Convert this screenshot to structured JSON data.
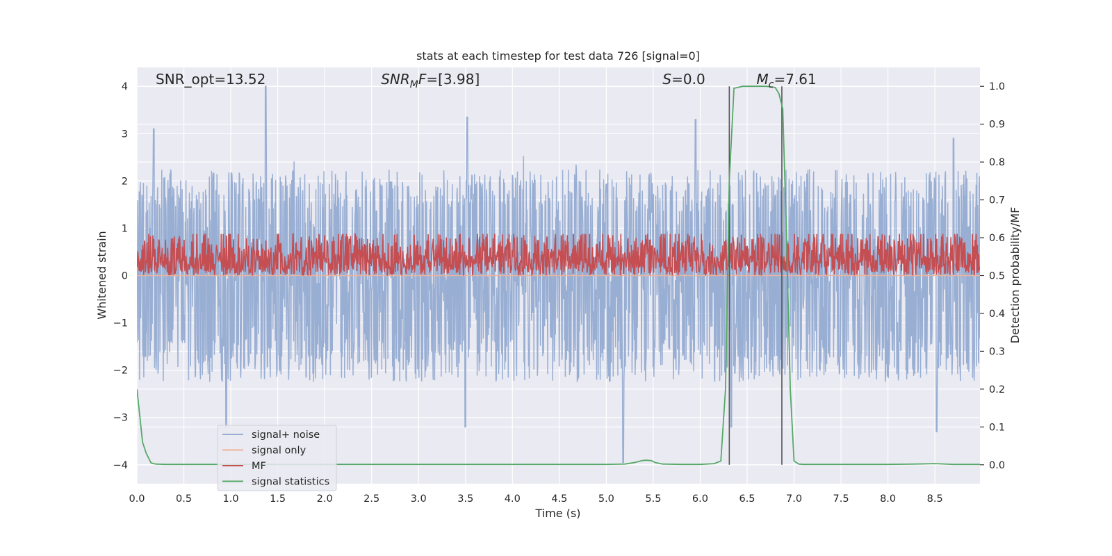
{
  "chart_data": {
    "type": "line",
    "title": "stats at each timestep for test data 726 [signal=0]",
    "xlabel": "Time (s)",
    "ylabel": "Whitened strain",
    "y2label": "Detection probability/MF",
    "xlim": [
      0,
      8.98
    ],
    "ylim": [
      -4.4,
      4.4
    ],
    "y2lim": [
      -0.05,
      1.05
    ],
    "x_ticks": [
      0.0,
      0.5,
      1.0,
      1.5,
      2.0,
      2.5,
      3.0,
      3.5,
      4.0,
      4.5,
      5.0,
      5.5,
      6.0,
      6.5,
      7.0,
      7.5,
      8.0,
      8.5
    ],
    "x_tick_labels": [
      "0.0",
      "0.5",
      "1.0",
      "1.5",
      "2.0",
      "2.5",
      "3.0",
      "3.5",
      "4.0",
      "4.5",
      "5.0",
      "5.5",
      "6.0",
      "6.5",
      "7.0",
      "7.5",
      "8.0",
      "8.5"
    ],
    "y_ticks": [
      -4,
      -3,
      -2,
      -1,
      0,
      1,
      2,
      3,
      4
    ],
    "y_tick_labels": [
      "−4",
      "−3",
      "−2",
      "−1",
      "0",
      "1",
      "2",
      "3",
      "4"
    ],
    "y2_ticks": [
      0.0,
      0.1,
      0.2,
      0.3,
      0.4,
      0.5,
      0.6,
      0.7,
      0.8,
      0.9,
      1.0
    ],
    "y2_tick_labels": [
      "0.0",
      "0.1",
      "0.2",
      "0.3",
      "0.4",
      "0.5",
      "0.6",
      "0.7",
      "0.8",
      "0.9",
      "1.0"
    ],
    "grid": true,
    "annotations": [
      {
        "id": "snr-opt",
        "x": 0.2,
        "text_parts": [
          {
            "t": "SNR_opt=13.52",
            "italic": false
          }
        ]
      },
      {
        "id": "snr-mf",
        "x": 2.6,
        "text_parts": [
          {
            "t": "SNR",
            "italic": true
          },
          {
            "t": "M",
            "italic": true,
            "sub": true
          },
          {
            "t": "F",
            "italic": true
          },
          {
            "t": "=[3.98]",
            "italic": false
          }
        ]
      },
      {
        "id": "s-stat",
        "x": 5.6,
        "text_parts": [
          {
            "t": "S",
            "italic": true
          },
          {
            "t": "=0.0",
            "italic": false
          }
        ]
      },
      {
        "id": "mc",
        "x": 6.6,
        "text_parts": [
          {
            "t": "M",
            "italic": true
          },
          {
            "t": "c",
            "italic": true,
            "sub": true
          },
          {
            "t": "=7.61",
            "italic": false
          }
        ]
      }
    ],
    "vertical_lines": [
      6.31,
      6.87
    ],
    "legend": {
      "position": "lower-left",
      "entries": [
        {
          "label": "signal+ noise",
          "color": "#98aed3"
        },
        {
          "label": "signal only",
          "color": "#f0b39a"
        },
        {
          "label": "MF",
          "color": "#c44e52"
        },
        {
          "label": "signal statistics",
          "color": "#55a868"
        }
      ]
    },
    "series": [
      {
        "name": "signal+ noise",
        "kind": "noise",
        "axis": "left",
        "color": "#98aed3",
        "approx_band": [
          -1.5,
          1.5
        ],
        "approx_extremes": [
          -4.0,
          4.0
        ],
        "peaks": [
          [
            0.18,
            3.1
          ],
          [
            1.37,
            4.0
          ],
          [
            0.95,
            -3.2
          ],
          [
            3.52,
            3.35
          ],
          [
            3.5,
            -3.2
          ],
          [
            5.18,
            -3.95
          ],
          [
            5.95,
            3.3
          ],
          [
            6.33,
            -3.2
          ],
          [
            8.7,
            2.9
          ],
          [
            8.52,
            -3.3
          ]
        ]
      },
      {
        "name": "signal only",
        "kind": "flat",
        "axis": "left",
        "color": "#f0b39a",
        "value": 0
      },
      {
        "name": "MF",
        "kind": "noise",
        "axis": "right",
        "color": "#c44e52",
        "approx_band": [
          0.5,
          0.58
        ],
        "approx_extremes": [
          0.5,
          0.61
        ]
      },
      {
        "name": "signal statistics",
        "kind": "line",
        "axis": "right",
        "color": "#55a868",
        "x": [
          0.0,
          0.03,
          0.06,
          0.1,
          0.15,
          0.2,
          0.3,
          0.5,
          1.0,
          2.0,
          3.0,
          4.0,
          5.0,
          5.2,
          5.3,
          5.38,
          5.42,
          5.48,
          5.52,
          5.6,
          5.8,
          6.0,
          6.15,
          6.22,
          6.27,
          6.31,
          6.36,
          6.4,
          6.45,
          6.55,
          6.7,
          6.8,
          6.84,
          6.88,
          6.92,
          6.96,
          7.0,
          7.05,
          7.1,
          7.5,
          8.0,
          8.3,
          8.5,
          8.7,
          8.98
        ],
        "y": [
          0.2,
          0.13,
          0.06,
          0.03,
          0.005,
          0.002,
          0.001,
          0.001,
          0.001,
          0.001,
          0.001,
          0.001,
          0.001,
          0.002,
          0.006,
          0.011,
          0.012,
          0.011,
          0.006,
          0.002,
          0.001,
          0.001,
          0.003,
          0.01,
          0.2,
          0.75,
          0.995,
          0.997,
          1.0,
          1.0,
          1.0,
          0.997,
          0.98,
          0.94,
          0.6,
          0.2,
          0.01,
          0.002,
          0.001,
          0.001,
          0.001,
          0.002,
          0.003,
          0.001,
          0.001
        ]
      }
    ]
  }
}
